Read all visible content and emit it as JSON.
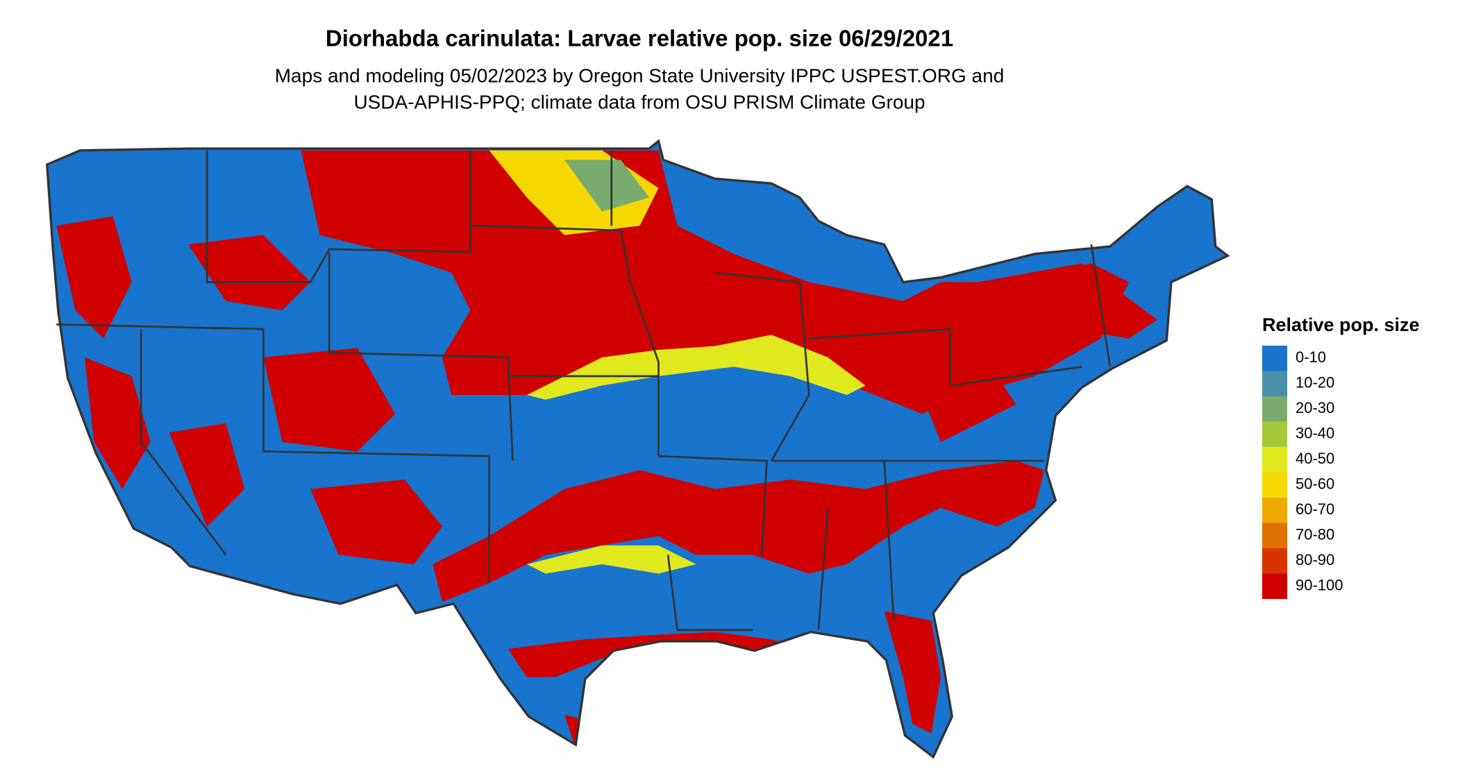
{
  "title": "Diorhabda carinulata: Larvae relative pop. size 06/29/2021",
  "subtitle": [
    "Maps and modeling 05/02/2023 by Oregon State University IPPC USPEST.ORG and",
    "USDA-APHIS-PPQ; climate data from OSU PRISM Climate Group"
  ],
  "legend": {
    "title": "Relative pop. size",
    "items": [
      {
        "label": "0-10",
        "color": "#1874cd"
      },
      {
        "label": "10-20",
        "color": "#4a8fa8"
      },
      {
        "label": "20-30",
        "color": "#7aab6e"
      },
      {
        "label": "30-40",
        "color": "#a8c83c"
      },
      {
        "label": "40-50",
        "color": "#e0e81e"
      },
      {
        "label": "50-60",
        "color": "#f5d800"
      },
      {
        "label": "60-70",
        "color": "#eea800"
      },
      {
        "label": "70-80",
        "color": "#e07000"
      },
      {
        "label": "80-90",
        "color": "#d83400"
      },
      {
        "label": "90-100",
        "color": "#d00000"
      }
    ]
  }
}
